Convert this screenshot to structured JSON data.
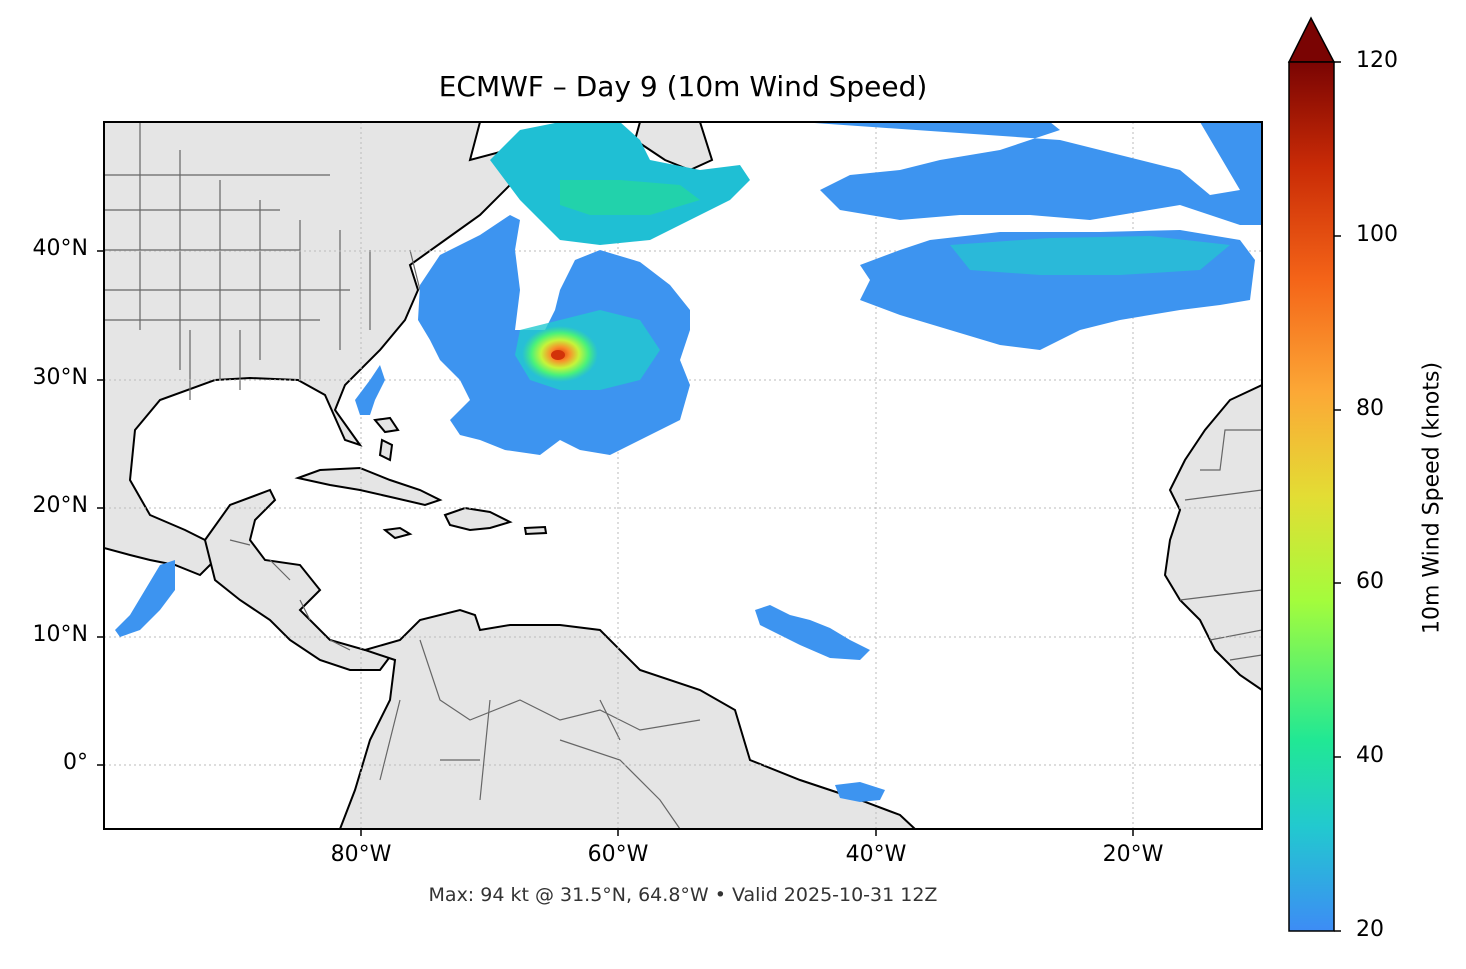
{
  "title": "ECMWF – Day 9 (10m Wind Speed)",
  "subtitle": "Max: 94 kt @ 31.5°N, 64.8°W • Valid 2025-10-31 12Z",
  "lat_ticks": [
    "40°N",
    "30°N",
    "20°N",
    "10°N",
    "0°"
  ],
  "lon_ticks": [
    "80°W",
    "60°W",
    "40°W",
    "20°W"
  ],
  "colorbar": {
    "label": "10m Wind Speed (knots)",
    "ticks": [
      "20",
      "40",
      "60",
      "80",
      "100",
      "120"
    ],
    "min": 20,
    "max": 120,
    "extend": "max",
    "colors": [
      "#3d8cf5",
      "#22c9cf",
      "#21e894",
      "#a4fc3c",
      "#e3dd34",
      "#fca836",
      "#f46418",
      "#c92b06",
      "#7a0403"
    ]
  },
  "colors": {
    "land": "#e5e5e5",
    "coast": "#000000",
    "border": "#666666",
    "grid": "#bbbbbb"
  },
  "map": {
    "extent_lon": [
      -100,
      -10
    ],
    "extent_lat": [
      -5,
      50
    ],
    "max_wind_kt": 94,
    "max_lat": 31.5,
    "max_lon": -64.8
  }
}
